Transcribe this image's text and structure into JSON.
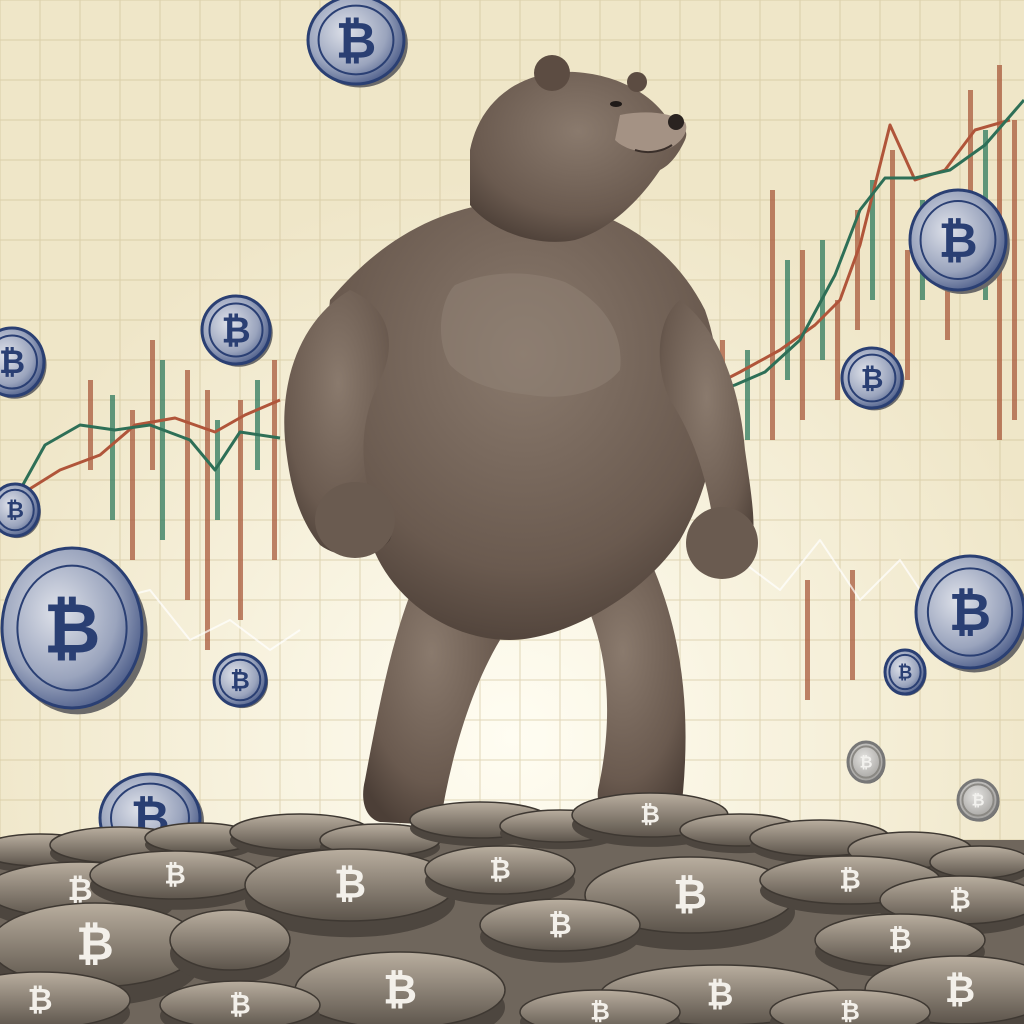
{
  "scene": {
    "subject": "bear-standing-over-coins",
    "coin_symbol": "₿",
    "colors": {
      "paper": "#f1ead0",
      "paper_glow": "#fbf7e4",
      "grid": "#cdbf95",
      "candle_red": "#a8593c",
      "candle_green": "#2f7a5e",
      "line_red": "#b0553a",
      "line_green": "#2e6f57",
      "fur_dark": "#5a4a40",
      "fur_mid": "#7a6a5e",
      "fur_light": "#9a8a7c",
      "coin_blue": "#2a3f73",
      "coin_silver": "#c9c6c0",
      "coin_edge": "#6b6a6a",
      "pile_tan": "#8f8272"
    }
  }
}
